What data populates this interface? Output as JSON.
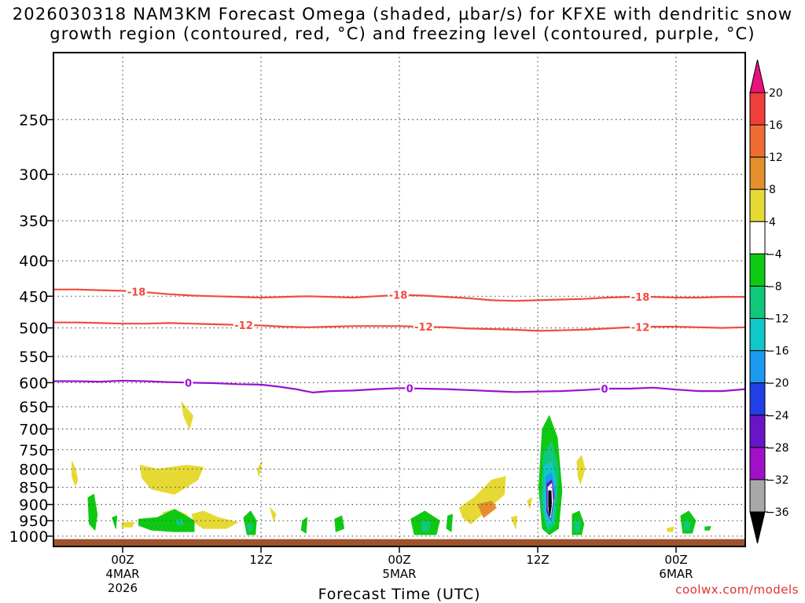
{
  "chart_data": {
    "type": "heatmap",
    "title": "2026030318 NAM3KM Forecast Omega (shaded, µbar/s) for KFXE with dendritic snow growth region (contoured, red, °C) and freezing level (contoured, purple, °C)",
    "title_lines": [
      "2026030318 NAM3KM Forecast Omega (shaded, µbar/s) for KFXE with dendritic snow",
      "growth region (contoured, red, °C) and freezing level (contoured, purple, °C)"
    ],
    "xlabel": "Forecast Time (UTC)",
    "ylabel": "",
    "x_axis": {
      "unit": "hours since 2026-03-03 18Z",
      "range": [
        3,
        63
      ],
      "ticks": [
        {
          "x": 9,
          "label": "00Z",
          "sub": [
            "4MAR",
            "2026"
          ]
        },
        {
          "x": 21,
          "label": "12Z",
          "sub": []
        },
        {
          "x": 33,
          "label": "00Z",
          "sub": [
            "5MAR"
          ]
        },
        {
          "x": 45,
          "label": "12Z",
          "sub": []
        },
        {
          "x": 57,
          "label": "00Z",
          "sub": [
            "6MAR"
          ]
        }
      ]
    },
    "y_axis": {
      "unit": "hPa",
      "scale": "log",
      "range": [
        1035,
        200
      ],
      "ticks": [
        250,
        300,
        350,
        400,
        450,
        500,
        550,
        600,
        650,
        700,
        750,
        800,
        850,
        900,
        950,
        1000
      ]
    },
    "grid": true,
    "colorbar": {
      "unit": "µbar/s",
      "labels": [
        20,
        16,
        12,
        8,
        4,
        -4,
        -8,
        -12,
        -16,
        -20,
        -24,
        -28,
        -32,
        -36
      ],
      "bins": [
        {
          "color": "#e8137a",
          "range": "> 20"
        },
        {
          "color": "#f03f3a",
          "range": "16 to 20"
        },
        {
          "color": "#ef6d33",
          "range": "12 to 16"
        },
        {
          "color": "#e48f2c",
          "range": "8 to 12"
        },
        {
          "color": "#e3ae30",
          "range": "4 to 8"
        },
        {
          "color": "#e6d933",
          "range": "-4 to 4 (shown as 4 to 8 band start)"
        },
        {
          "color": "#ffffff",
          "range": "-4 to 4"
        },
        {
          "color": "#0ec912",
          "range": "-8 to -4"
        },
        {
          "color": "#10c87a",
          "range": "-12 to -8"
        },
        {
          "color": "#10c8c8",
          "range": "-16 to -12"
        },
        {
          "color": "#1c9af0",
          "range": "-20 to -16"
        },
        {
          "color": "#2040e6",
          "range": "-24 to -20"
        },
        {
          "color": "#6a14c8",
          "range": "-28 to -24"
        },
        {
          "color": "#a010c8",
          "range": "-32 to -28"
        },
        {
          "color": "#a8a8a8",
          "range": "-36 to -32"
        },
        {
          "color": "#000000",
          "range": "< -36"
        }
      ]
    },
    "contours": [
      {
        "name": "-18",
        "label": "-18",
        "color": "#f24a3f",
        "x": [
          3,
          5,
          7,
          9,
          11,
          13,
          15,
          17,
          19,
          21,
          23,
          25,
          27,
          29,
          31,
          33,
          35,
          37,
          39,
          41,
          43,
          45,
          47,
          49,
          51,
          53,
          55,
          57,
          59,
          61,
          63
        ],
        "y": [
          440,
          440,
          441,
          442,
          444,
          447,
          449,
          450,
          451,
          452,
          451,
          450,
          451,
          452,
          450,
          448,
          449,
          451,
          453,
          456,
          457,
          456,
          455,
          454,
          452,
          451,
          451,
          452,
          452,
          451,
          451
        ],
        "label_x": [
          10.2,
          32.9,
          53.9
        ]
      },
      {
        "name": "-12",
        "label": "-12",
        "color": "#f24a3f",
        "x": [
          3,
          5,
          7,
          9,
          11,
          13,
          15,
          17,
          19,
          21,
          23,
          25,
          27,
          29,
          31,
          33,
          35,
          37,
          39,
          41,
          43,
          45,
          47,
          49,
          51,
          53,
          55,
          57,
          59,
          61,
          63
        ],
        "y": [
          491,
          491,
          492,
          493,
          493,
          492,
          493,
          494,
          495,
          496,
          498,
          499,
          498,
          497,
          497,
          497,
          498,
          499,
          501,
          502,
          503,
          505,
          504,
          503,
          501,
          499,
          498,
          498,
          499,
          500,
          499
        ],
        "label_x": [
          19.5,
          35.1,
          53.9
        ]
      },
      {
        "name": "0",
        "label": "0",
        "color": "#9a12d0",
        "x": [
          3,
          5,
          7,
          9,
          11,
          13,
          15,
          17,
          19,
          21,
          22.5,
          24,
          25.5,
          27,
          29,
          31,
          33,
          35,
          37,
          39,
          41,
          43,
          45,
          47,
          49,
          51,
          53,
          55,
          57,
          59,
          61,
          63
        ],
        "y": [
          597,
          597,
          598,
          596,
          597,
          599,
          600,
          601,
          603,
          604,
          608,
          613,
          620,
          617,
          616,
          613,
          611,
          612,
          613,
          615,
          617,
          619,
          618,
          617,
          615,
          612,
          612,
          610,
          614,
          617,
          617,
          613
        ],
        "label_x": [
          14.7,
          33.9,
          50.8
        ]
      }
    ],
    "omega_shaded_regions": [
      {
        "color": "#e6d933",
        "x": [
          4.6,
          4.9,
          5.1,
          4.9,
          4.6
        ],
        "y": [
          780,
          800,
          830,
          845,
          820
        ]
      },
      {
        "color": "#e6d933",
        "x": [
          14.1,
          14.6,
          15.1,
          14.8,
          14.3
        ],
        "y": [
          640,
          655,
          670,
          700,
          670
        ]
      },
      {
        "color": "#e6d933",
        "x": [
          10.5,
          12,
          14.5,
          16,
          15.5,
          13.5,
          11.5,
          10.7
        ],
        "y": [
          790,
          800,
          790,
          795,
          830,
          870,
          855,
          825
        ]
      },
      {
        "color": "#e6d933",
        "x": [
          12.5,
          13.5,
          14.5,
          15.2,
          14.5,
          13.2
        ],
        "y": [
          925,
          915,
          930,
          960,
          975,
          965
        ]
      },
      {
        "color": "#e6d933",
        "x": [
          15,
          16,
          17.3,
          19,
          18,
          16,
          15.2
        ],
        "y": [
          930,
          920,
          940,
          955,
          975,
          975,
          955
        ]
      },
      {
        "color": "#e6d933",
        "x": [
          20.7,
          21.1,
          20.8
        ],
        "y": [
          800,
          780,
          820
        ]
      },
      {
        "color": "#e6d933",
        "x": [
          21.8,
          22.3,
          22.1
        ],
        "y": [
          910,
          930,
          950
        ]
      },
      {
        "color": "#e6d933",
        "x": [
          9,
          10,
          9.8,
          8.9
        ],
        "y": [
          955,
          955,
          970,
          970
        ]
      },
      {
        "color": "#e6d933",
        "x": [
          38.2,
          39.5,
          41,
          42.2,
          42.1,
          40.5,
          39.2,
          38.5
        ],
        "y": [
          910,
          880,
          830,
          820,
          870,
          920,
          960,
          940
        ]
      },
      {
        "color": "#e6d933",
        "x": [
          42.7,
          43.2,
          43.1
        ],
        "y": [
          940,
          935,
          975
        ]
      },
      {
        "color": "#e6d933",
        "x": [
          44.1,
          44.5,
          44.3
        ],
        "y": [
          890,
          880,
          910
        ]
      },
      {
        "color": "#e6d933",
        "x": [
          48.4,
          48.8,
          49.1,
          48.7,
          48.5
        ],
        "y": [
          780,
          765,
          800,
          840,
          820
        ]
      },
      {
        "color": "#e6d933",
        "x": [
          56.2,
          56.8,
          56.7,
          56.3
        ],
        "y": [
          975,
          970,
          985,
          985
        ]
      },
      {
        "color": "#e48f2c",
        "x": [
          39.8,
          41,
          41.4,
          40.3
        ],
        "y": [
          900,
          890,
          910,
          940
        ]
      },
      {
        "color": "#0ec912",
        "x": [
          6,
          6.5,
          6.8,
          6.6,
          6.1
        ],
        "y": [
          880,
          870,
          930,
          980,
          960
        ]
      },
      {
        "color": "#0ec912",
        "x": [
          8.1,
          8.5,
          8.4
        ],
        "y": [
          940,
          935,
          975
        ]
      },
      {
        "color": "#0ec912",
        "x": [
          10.4,
          12,
          13.5,
          15.2,
          15.2,
          13.5,
          11.5,
          10.4
        ],
        "y": [
          945,
          940,
          915,
          950,
          985,
          985,
          980,
          965
        ]
      },
      {
        "color": "#10c87a",
        "x": [
          13.6,
          14.1,
          14.3,
          13.8
        ],
        "y": [
          950,
          945,
          960,
          965
        ]
      },
      {
        "color": "#0ec912",
        "x": [
          19.5,
          20.1,
          20.6,
          20.5,
          19.8
        ],
        "y": [
          940,
          920,
          950,
          995,
          995
        ]
      },
      {
        "color": "#10c87a",
        "x": [
          19.8,
          20.3,
          20.2,
          19.9
        ],
        "y": [
          960,
          960,
          985,
          985
        ]
      },
      {
        "color": "#0ec912",
        "x": [
          24.6,
          25,
          24.9,
          24.5
        ],
        "y": [
          950,
          940,
          990,
          980
        ]
      },
      {
        "color": "#0ec912",
        "x": [
          27.4,
          28,
          28.2,
          27.5
        ],
        "y": [
          945,
          935,
          975,
          985
        ]
      },
      {
        "color": "#0ec912",
        "x": [
          34,
          35.2,
          36.5,
          36.2,
          34.3
        ],
        "y": [
          945,
          920,
          950,
          995,
          995
        ]
      },
      {
        "color": "#10c87a",
        "x": [
          34.9,
          35.7,
          35.5,
          35
        ],
        "y": [
          950,
          955,
          985,
          985
        ]
      },
      {
        "color": "#0ec912",
        "x": [
          37.2,
          37.6,
          37.5,
          37.1
        ],
        "y": [
          935,
          930,
          985,
          975
        ]
      },
      {
        "color": "#0ec912",
        "x": [
          45.4,
          46,
          46.7,
          47.1,
          46.8,
          46,
          45.4,
          45.1
        ],
        "y": [
          700,
          670,
          720,
          860,
          975,
          995,
          975,
          850
        ]
      },
      {
        "color": "#10c87a",
        "x": [
          45.5,
          46.2,
          46.8,
          46.5,
          45.9,
          45.3
        ],
        "y": [
          760,
          730,
          800,
          960,
          985,
          900
        ]
      },
      {
        "color": "#10c8c8",
        "x": [
          45.6,
          46.2,
          46.6,
          46.3,
          45.8,
          45.5
        ],
        "y": [
          790,
          780,
          840,
          950,
          970,
          900
        ]
      },
      {
        "color": "#1c9af0",
        "x": [
          45.7,
          46.2,
          46.5,
          46.2,
          45.8
        ],
        "y": [
          820,
          810,
          860,
          950,
          930
        ]
      },
      {
        "color": "#6a14c8",
        "x": [
          45.8,
          46.2,
          46.4,
          46.1,
          45.8
        ],
        "y": [
          840,
          830,
          880,
          945,
          920
        ]
      },
      {
        "color": "#ffffff",
        "x": [
          45.9,
          46.2,
          46.3,
          46.1,
          45.9
        ],
        "y": [
          850,
          840,
          890,
          940,
          910
        ]
      },
      {
        "color": "#000000",
        "x": [
          45.95,
          46.15,
          46.2,
          46.05,
          45.95
        ],
        "y": [
          860,
          860,
          900,
          935,
          905
        ]
      },
      {
        "color": "#0ec912",
        "x": [
          48,
          48.6,
          49,
          48.8,
          48
        ],
        "y": [
          930,
          920,
          960,
          995,
          995
        ]
      },
      {
        "color": "#10c87a",
        "x": [
          48.2,
          48.7,
          48.6,
          48.2
        ],
        "y": [
          950,
          950,
          985,
          985
        ]
      },
      {
        "color": "#0ec912",
        "x": [
          57.4,
          58.1,
          58.7,
          58.4,
          57.6
        ],
        "y": [
          935,
          920,
          950,
          990,
          990
        ]
      },
      {
        "color": "#10c87a",
        "x": [
          57.7,
          58.2,
          58.2,
          57.7
        ],
        "y": [
          950,
          950,
          980,
          980
        ]
      },
      {
        "color": "#0ec912",
        "x": [
          59.5,
          60,
          59.9,
          59.5
        ],
        "y": [
          970,
          968,
          980,
          980
        ]
      }
    ],
    "surface_band": {
      "color": "#a0522d",
      "y_range": [
        1010,
        1035
      ]
    }
  },
  "credit": "coolwx.com/models"
}
